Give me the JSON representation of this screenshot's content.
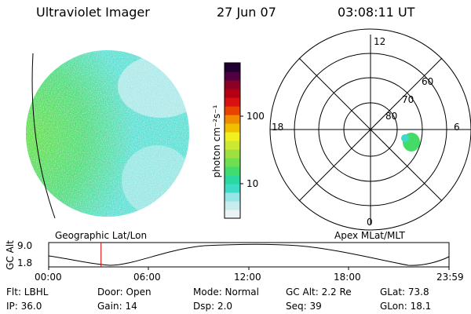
{
  "header": {
    "instrument": "Ultraviolet Imager",
    "date": "27 Jun 07",
    "time": "03:08:11 UT"
  },
  "colorbar": {
    "label": "photon cm⁻²s⁻¹",
    "ticks": [
      "100",
      "10"
    ],
    "colors": [
      "#eaf4f4",
      "#c8ecec",
      "#96e6e6",
      "#3cdcc8",
      "#2ad8a0",
      "#40dc70",
      "#6ee050",
      "#9ee040",
      "#cde830",
      "#f0f020",
      "#f0c000",
      "#f08c00",
      "#e84400",
      "#d81010",
      "#b40014",
      "#8c0028",
      "#500040",
      "#200030"
    ]
  },
  "earth_image": {
    "day_color": "#5ce05c",
    "night_color": "#5ee0d4",
    "faint_color": "#c8ecf0"
  },
  "polar_plot": {
    "mlt_labels": {
      "top": "12",
      "left": "18",
      "right": "6",
      "bottom": "0"
    },
    "lat_labels": [
      "60",
      "70",
      "80"
    ],
    "aurora_color": "#44dc66"
  },
  "footer_labels": {
    "left": "Geographic Lat/Lon",
    "right": "Apex MLat/MLT"
  },
  "orbit": {
    "ylabel": "GC Alt",
    "ymax": "9.0",
    "ymin": "1.8",
    "xticks": [
      "00:00",
      "06:00",
      "12:00",
      "18:00",
      "23:59"
    ],
    "current_hour": 3.14,
    "marker_color": "#dd0000"
  },
  "info": {
    "filter": "Flt: LBHL",
    "door": "Door: Open",
    "mode": "Mode: Normal",
    "gc_alt": "GC Alt: 2.2 Re",
    "glat": "GLat:  73.8",
    "ip": "IP: 36.0",
    "gain": "Gain: 14",
    "dsp": "Dsp:     2.0",
    "seq": "Seq: 39",
    "glon": "GLon:  18.1"
  }
}
